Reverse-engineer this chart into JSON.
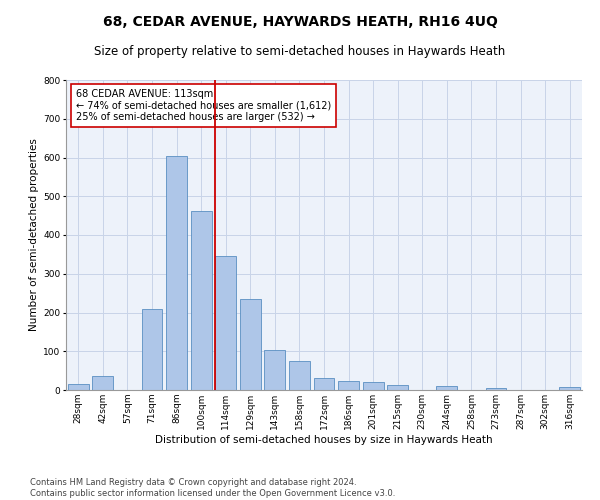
{
  "title": "68, CEDAR AVENUE, HAYWARDS HEATH, RH16 4UQ",
  "subtitle": "Size of property relative to semi-detached houses in Haywards Heath",
  "xlabel": "Distribution of semi-detached houses by size in Haywards Heath",
  "ylabel": "Number of semi-detached properties",
  "footnote1": "Contains HM Land Registry data © Crown copyright and database right 2024.",
  "footnote2": "Contains public sector information licensed under the Open Government Licence v3.0.",
  "bar_labels": [
    "28sqm",
    "42sqm",
    "57sqm",
    "71sqm",
    "86sqm",
    "100sqm",
    "114sqm",
    "129sqm",
    "143sqm",
    "158sqm",
    "172sqm",
    "186sqm",
    "201sqm",
    "215sqm",
    "230sqm",
    "244sqm",
    "258sqm",
    "273sqm",
    "287sqm",
    "302sqm",
    "316sqm"
  ],
  "bar_values": [
    15,
    35,
    0,
    210,
    605,
    462,
    347,
    235,
    102,
    76,
    30,
    22,
    21,
    13,
    0,
    10,
    0,
    5,
    0,
    0,
    8
  ],
  "bar_color": "#aec6e8",
  "bar_edge_color": "#5a8fc2",
  "vline_color": "#cc0000",
  "annotation_title": "68 CEDAR AVENUE: 113sqm",
  "annotation_line1": "← 74% of semi-detached houses are smaller (1,612)",
  "annotation_line2": "25% of semi-detached houses are larger (532) →",
  "ylim": [
    0,
    800
  ],
  "yticks": [
    0,
    100,
    200,
    300,
    400,
    500,
    600,
    700,
    800
  ],
  "background_color": "#edf2fa",
  "grid_color": "#c8d4e8",
  "title_fontsize": 10,
  "subtitle_fontsize": 8.5,
  "axis_label_fontsize": 7.5,
  "tick_fontsize": 6.5,
  "annotation_fontsize": 7,
  "footnote_fontsize": 6
}
